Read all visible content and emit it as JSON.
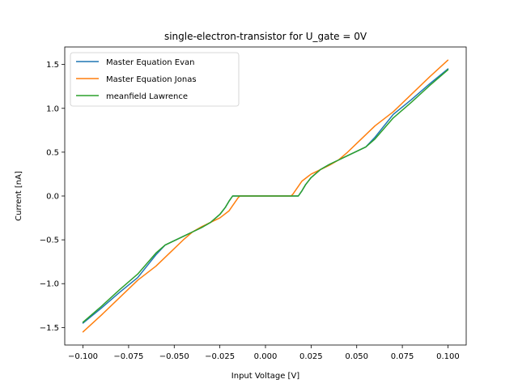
{
  "chart_data": {
    "type": "line",
    "title": "single-electron-transistor for U_gate = 0V",
    "xlabel": "Input Voltage [V]",
    "ylabel": "Current [nA]",
    "xlim": [
      -0.11,
      0.11
    ],
    "ylim": [
      -1.7,
      1.7
    ],
    "xticks": [
      -0.1,
      -0.075,
      -0.05,
      -0.025,
      0.0,
      0.025,
      0.05,
      0.075,
      0.1
    ],
    "xtick_labels": [
      "−0.100",
      "−0.075",
      "−0.050",
      "−0.025",
      "0.000",
      "0.025",
      "0.050",
      "0.075",
      "0.100"
    ],
    "yticks": [
      -1.5,
      -1.0,
      -0.5,
      0.0,
      0.5,
      1.0,
      1.5
    ],
    "ytick_labels": [
      "−1.5",
      "−1.0",
      "−0.5",
      "0.0",
      "0.5",
      "1.0",
      "1.5"
    ],
    "grid": false,
    "legend_position": "top-left",
    "series": [
      {
        "name": "Master Equation Evan",
        "color": "#1f77b4",
        "x": [
          -0.1,
          -0.09,
          -0.08,
          -0.07,
          -0.06,
          -0.055,
          -0.05,
          -0.045,
          -0.04,
          -0.035,
          -0.03,
          -0.025,
          -0.022,
          -0.02,
          -0.018,
          0.0,
          0.018,
          0.02,
          0.022,
          0.025,
          0.03,
          0.035,
          0.04,
          0.045,
          0.05,
          0.055,
          0.06,
          0.07,
          0.08,
          0.09,
          0.1
        ],
        "y": [
          -1.45,
          -1.28,
          -1.1,
          -0.93,
          -0.67,
          -0.56,
          -0.51,
          -0.46,
          -0.41,
          -0.36,
          -0.3,
          -0.21,
          -0.13,
          -0.06,
          0.0,
          0.0,
          0.0,
          0.06,
          0.13,
          0.21,
          0.3,
          0.36,
          0.41,
          0.46,
          0.51,
          0.56,
          0.67,
          0.93,
          1.1,
          1.28,
          1.45
        ]
      },
      {
        "name": "Master Equation Jonas",
        "color": "#ff7f0e",
        "x": [
          -0.1,
          -0.09,
          -0.08,
          -0.07,
          -0.06,
          -0.05,
          -0.045,
          -0.04,
          -0.035,
          -0.03,
          -0.025,
          -0.02,
          -0.017,
          -0.015,
          -0.014,
          0.0,
          0.014,
          0.015,
          0.017,
          0.02,
          0.025,
          0.03,
          0.035,
          0.04,
          0.045,
          0.05,
          0.06,
          0.07,
          0.08,
          0.09,
          0.1
        ],
        "y": [
          -1.55,
          -1.36,
          -1.16,
          -0.96,
          -0.8,
          -0.6,
          -0.5,
          -0.41,
          -0.35,
          -0.3,
          -0.25,
          -0.17,
          -0.08,
          -0.02,
          0.0,
          0.0,
          0.0,
          0.02,
          0.08,
          0.17,
          0.25,
          0.3,
          0.35,
          0.41,
          0.5,
          0.6,
          0.8,
          0.96,
          1.16,
          1.36,
          1.55
        ]
      },
      {
        "name": "meanfield Lawrence",
        "color": "#2ca02c",
        "x": [
          -0.1,
          -0.09,
          -0.08,
          -0.07,
          -0.06,
          -0.055,
          -0.05,
          -0.045,
          -0.04,
          -0.035,
          -0.03,
          -0.025,
          -0.022,
          -0.02,
          -0.018,
          0.0,
          0.018,
          0.02,
          0.022,
          0.025,
          0.03,
          0.035,
          0.04,
          0.045,
          0.05,
          0.055,
          0.06,
          0.07,
          0.08,
          0.09,
          0.1
        ],
        "y": [
          -1.44,
          -1.26,
          -1.07,
          -0.89,
          -0.65,
          -0.56,
          -0.51,
          -0.46,
          -0.41,
          -0.36,
          -0.3,
          -0.21,
          -0.13,
          -0.06,
          0.0,
          0.0,
          0.0,
          0.06,
          0.13,
          0.21,
          0.3,
          0.36,
          0.41,
          0.46,
          0.51,
          0.56,
          0.65,
          0.89,
          1.07,
          1.26,
          1.44
        ]
      }
    ]
  }
}
